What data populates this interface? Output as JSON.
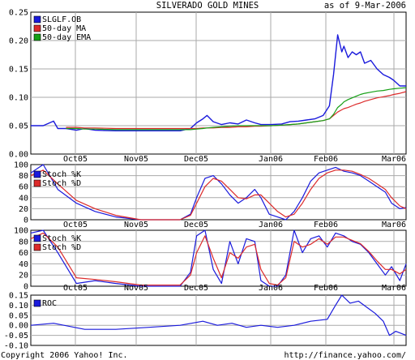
{
  "header": {
    "title": "SILVERADO GOLD MINES",
    "as_of": "as of  9-Mar-2006"
  },
  "footer": {
    "copyright": "Copyright 2006 Yahoo! Inc.",
    "url": "http://finance.yahoo.com/"
  },
  "colors": {
    "background": "#ffffff",
    "grid": "#aaaaaa",
    "frame": "#000000",
    "price": "#1a1adc",
    "ma": "#dc2a2a",
    "ema": "#15a015"
  },
  "chart_data": [
    {
      "type": "line",
      "title": "SILVERADO GOLD MINES",
      "x": [
        "2005-09-09",
        "2005-09-15",
        "2005-09-20",
        "2005-09-22",
        "2005-09-26",
        "2005-10-01",
        "2005-10-05",
        "2005-10-10",
        "2005-10-20",
        "2005-11-01",
        "2005-11-10",
        "2005-11-20",
        "2005-11-25",
        "2005-11-28",
        "2005-12-01",
        "2005-12-03",
        "2005-12-06",
        "2005-12-10",
        "2005-12-14",
        "2005-12-18",
        "2005-12-22",
        "2005-12-26",
        "2005-12-29",
        "2006-01-03",
        "2006-01-08",
        "2006-01-12",
        "2006-01-16",
        "2006-01-20",
        "2006-01-24",
        "2006-01-28",
        "2006-01-31",
        "2006-02-02",
        "2006-02-04",
        "2006-02-06",
        "2006-02-07",
        "2006-02-09",
        "2006-02-11",
        "2006-02-13",
        "2006-02-15",
        "2006-02-17",
        "2006-02-20",
        "2006-02-23",
        "2006-02-26",
        "2006-03-01",
        "2006-03-03",
        "2006-03-06",
        "2006-03-09"
      ],
      "x_ticks": [
        "Oct05",
        "Nov05",
        "Dec05",
        "Jan06",
        "Feb06",
        "Mar06"
      ],
      "y_ticks": [
        "0.25",
        "0.20",
        "0.15",
        "0.10",
        "0.05",
        "0.00"
      ],
      "ylim": [
        0,
        0.25
      ],
      "grid": true,
      "legend_position": "top-left",
      "series": [
        {
          "name": "SLGLF.OB",
          "color": "#1a1adc",
          "values": [
            0.05,
            0.05,
            0.058,
            0.045,
            0.045,
            0.042,
            0.045,
            0.042,
            0.041,
            0.041,
            0.041,
            0.041,
            0.045,
            0.055,
            0.062,
            0.068,
            0.057,
            0.052,
            0.055,
            0.053,
            0.06,
            0.055,
            0.052,
            0.052,
            0.053,
            0.057,
            0.058,
            0.06,
            0.062,
            0.068,
            0.085,
            0.14,
            0.21,
            0.18,
            0.19,
            0.17,
            0.18,
            0.175,
            0.18,
            0.16,
            0.165,
            0.15,
            0.14,
            0.135,
            0.13,
            0.12,
            0.12
          ]
        },
        {
          "name": "50-day MA",
          "color": "#dc2a2a",
          "values": [
            null,
            null,
            null,
            null,
            0.047,
            0.047,
            0.046,
            0.046,
            0.045,
            0.045,
            0.045,
            0.045,
            0.045,
            0.045,
            0.046,
            0.046,
            0.046,
            0.047,
            0.047,
            0.048,
            0.048,
            0.049,
            0.049,
            0.05,
            0.051,
            0.052,
            0.053,
            0.055,
            0.057,
            0.059,
            0.062,
            0.068,
            0.074,
            0.078,
            0.08,
            0.082,
            0.085,
            0.088,
            0.09,
            0.093,
            0.096,
            0.099,
            0.101,
            0.103,
            0.105,
            0.107,
            0.11
          ]
        },
        {
          "name": "50-day EMA",
          "color": "#15a015",
          "values": [
            null,
            null,
            null,
            null,
            0.045,
            0.045,
            0.044,
            0.044,
            0.043,
            0.043,
            0.043,
            0.043,
            0.043,
            0.044,
            0.045,
            0.046,
            0.047,
            0.048,
            0.049,
            0.05,
            0.05,
            0.05,
            0.05,
            0.05,
            0.051,
            0.052,
            0.053,
            0.055,
            0.057,
            0.059,
            0.062,
            0.07,
            0.082,
            0.088,
            0.092,
            0.096,
            0.099,
            0.102,
            0.105,
            0.107,
            0.109,
            0.111,
            0.112,
            0.114,
            0.115,
            0.116,
            0.117
          ]
        }
      ]
    },
    {
      "type": "line",
      "x": [
        "2005-09-09",
        "2005-09-15",
        "2005-09-22",
        "2005-10-01",
        "2005-10-10",
        "2005-10-20",
        "2005-11-01",
        "2005-11-10",
        "2005-11-20",
        "2005-11-25",
        "2005-11-28",
        "2005-12-02",
        "2005-12-06",
        "2005-12-10",
        "2005-12-14",
        "2005-12-18",
        "2005-12-22",
        "2005-12-26",
        "2005-12-29",
        "2006-01-02",
        "2006-01-06",
        "2006-01-10",
        "2006-01-14",
        "2006-01-18",
        "2006-01-22",
        "2006-01-26",
        "2006-01-30",
        "2006-02-03",
        "2006-02-07",
        "2006-02-11",
        "2006-02-15",
        "2006-02-19",
        "2006-02-23",
        "2006-02-27",
        "2006-03-02",
        "2006-03-06",
        "2006-03-09"
      ],
      "x_ticks": [
        "Oct05",
        "Nov05",
        "Dec05",
        "Jan06",
        "Feb06",
        "Mar06"
      ],
      "y_ticks": [
        "100",
        "80",
        "60",
        "40",
        "20",
        "0"
      ],
      "ylim": [
        0,
        100
      ],
      "grid": true,
      "legend_position": "top-left",
      "series": [
        {
          "name": "Stoch %K",
          "color": "#1a1adc",
          "values": [
            85,
            100,
            55,
            30,
            15,
            5,
            0,
            0,
            0,
            10,
            40,
            75,
            80,
            65,
            45,
            30,
            40,
            55,
            40,
            10,
            5,
            0,
            15,
            40,
            70,
            85,
            90,
            95,
            88,
            85,
            80,
            70,
            60,
            50,
            30,
            20,
            22
          ]
        },
        {
          "name": "Stoch %D",
          "color": "#dc2a2a",
          "values": [
            80,
            90,
            65,
            35,
            20,
            8,
            0,
            0,
            0,
            8,
            30,
            60,
            75,
            70,
            55,
            40,
            38,
            45,
            45,
            30,
            15,
            5,
            10,
            30,
            55,
            75,
            85,
            90,
            90,
            88,
            82,
            75,
            65,
            55,
            40,
            25,
            20
          ]
        }
      ]
    },
    {
      "type": "line",
      "x": [
        "2005-09-09",
        "2005-09-15",
        "2005-09-22",
        "2005-10-01",
        "2005-10-10",
        "2005-10-20",
        "2005-11-01",
        "2005-11-20",
        "2005-11-25",
        "2005-11-28",
        "2005-12-02",
        "2005-12-06",
        "2005-12-10",
        "2005-12-14",
        "2005-12-18",
        "2005-12-22",
        "2005-12-26",
        "2005-12-29",
        "2006-01-02",
        "2006-01-06",
        "2006-01-10",
        "2006-01-14",
        "2006-01-18",
        "2006-01-22",
        "2006-01-26",
        "2006-01-30",
        "2006-02-03",
        "2006-02-07",
        "2006-02-11",
        "2006-02-15",
        "2006-02-19",
        "2006-02-23",
        "2006-02-27",
        "2006-03-02",
        "2006-03-06",
        "2006-03-09"
      ],
      "x_ticks": [
        "Oct05",
        "Nov05",
        "Dec05",
        "Jan06",
        "Feb06",
        "Mar06"
      ],
      "y_ticks": [
        "100",
        "80",
        "60",
        "40",
        "20",
        "0"
      ],
      "ylim": [
        0,
        100
      ],
      "grid": true,
      "legend_position": "top-left",
      "series": [
        {
          "name": "Stoch %K",
          "color": "#1a1adc",
          "values": [
            95,
            100,
            60,
            5,
            10,
            5,
            0,
            0,
            25,
            90,
            100,
            30,
            5,
            80,
            40,
            85,
            80,
            10,
            0,
            0,
            20,
            100,
            60,
            85,
            90,
            70,
            95,
            90,
            80,
            75,
            60,
            40,
            20,
            35,
            10,
            40
          ]
        },
        {
          "name": "Stoch %D",
          "color": "#dc2a2a",
          "values": [
            85,
            95,
            70,
            15,
            12,
            8,
            2,
            2,
            20,
            60,
            90,
            50,
            15,
            60,
            50,
            70,
            75,
            30,
            5,
            2,
            15,
            80,
            70,
            75,
            85,
            75,
            88,
            88,
            82,
            76,
            62,
            45,
            30,
            30,
            22,
            30
          ]
        }
      ]
    },
    {
      "type": "line",
      "x": [
        "2005-09-09",
        "2005-09-20",
        "2005-10-05",
        "2005-10-20",
        "2005-11-05",
        "2005-11-20",
        "2005-12-01",
        "2005-12-08",
        "2005-12-15",
        "2005-12-22",
        "2005-12-29",
        "2006-01-06",
        "2006-01-14",
        "2006-01-22",
        "2006-01-30",
        "2006-02-03",
        "2006-02-06",
        "2006-02-10",
        "2006-02-14",
        "2006-02-18",
        "2006-02-22",
        "2006-02-26",
        "2006-03-01",
        "2006-03-04",
        "2006-03-09"
      ],
      "x_ticks": [
        "Oct05",
        "Nov05",
        "Dec05",
        "Jan06",
        "Feb06",
        "Mar06"
      ],
      "y_ticks": [
        "0.15",
        "0.10",
        "0.05",
        "0.00",
        "-0.05",
        "-0.10"
      ],
      "ylim": [
        -0.1,
        0.15
      ],
      "grid": true,
      "legend_position": "top-left",
      "series": [
        {
          "name": "ROC",
          "color": "#1a1adc",
          "values": [
            0.0,
            0.01,
            -0.02,
            -0.02,
            -0.01,
            0.0,
            0.02,
            0.0,
            0.01,
            -0.01,
            0.0,
            -0.01,
            0.0,
            0.02,
            0.03,
            0.1,
            0.15,
            0.11,
            0.12,
            0.09,
            0.06,
            0.02,
            -0.05,
            -0.03,
            -0.05
          ]
        }
      ]
    }
  ]
}
